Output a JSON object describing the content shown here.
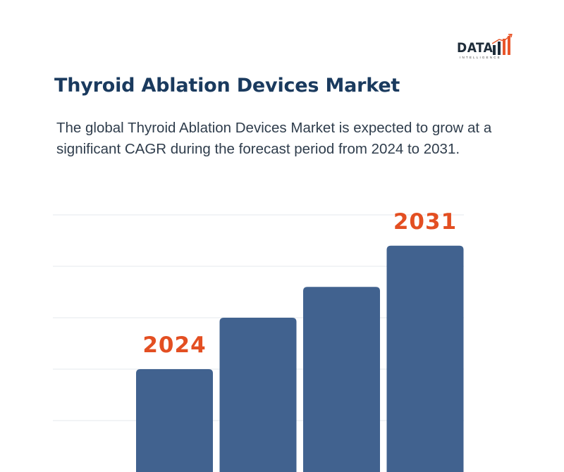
{
  "logo": {
    "text": "DATA",
    "subtext": "INTELLIGENCE",
    "colors": {
      "dark": "#1f2d3a",
      "accent": "#e8562a"
    }
  },
  "title": "Thyroid Ablation Devices Market",
  "description": "The global Thyroid Ablation Devices Market is expected to grow at a significant CAGR during the forecast period from 2024 to 2031.",
  "chart_data": {
    "type": "bar",
    "categories": [
      "2024",
      "",
      "",
      "2031"
    ],
    "values": [
      2,
      3,
      3.6,
      4.4
    ],
    "ylim": [
      0,
      5
    ],
    "gridlines": [
      1,
      2,
      3,
      4,
      5
    ],
    "grid": true,
    "bar_labels": [
      "2024",
      "",
      "",
      "2031"
    ],
    "colors": {
      "bar": "#41628f",
      "label": "#e34f22",
      "grid": "#e4e8ec"
    }
  }
}
